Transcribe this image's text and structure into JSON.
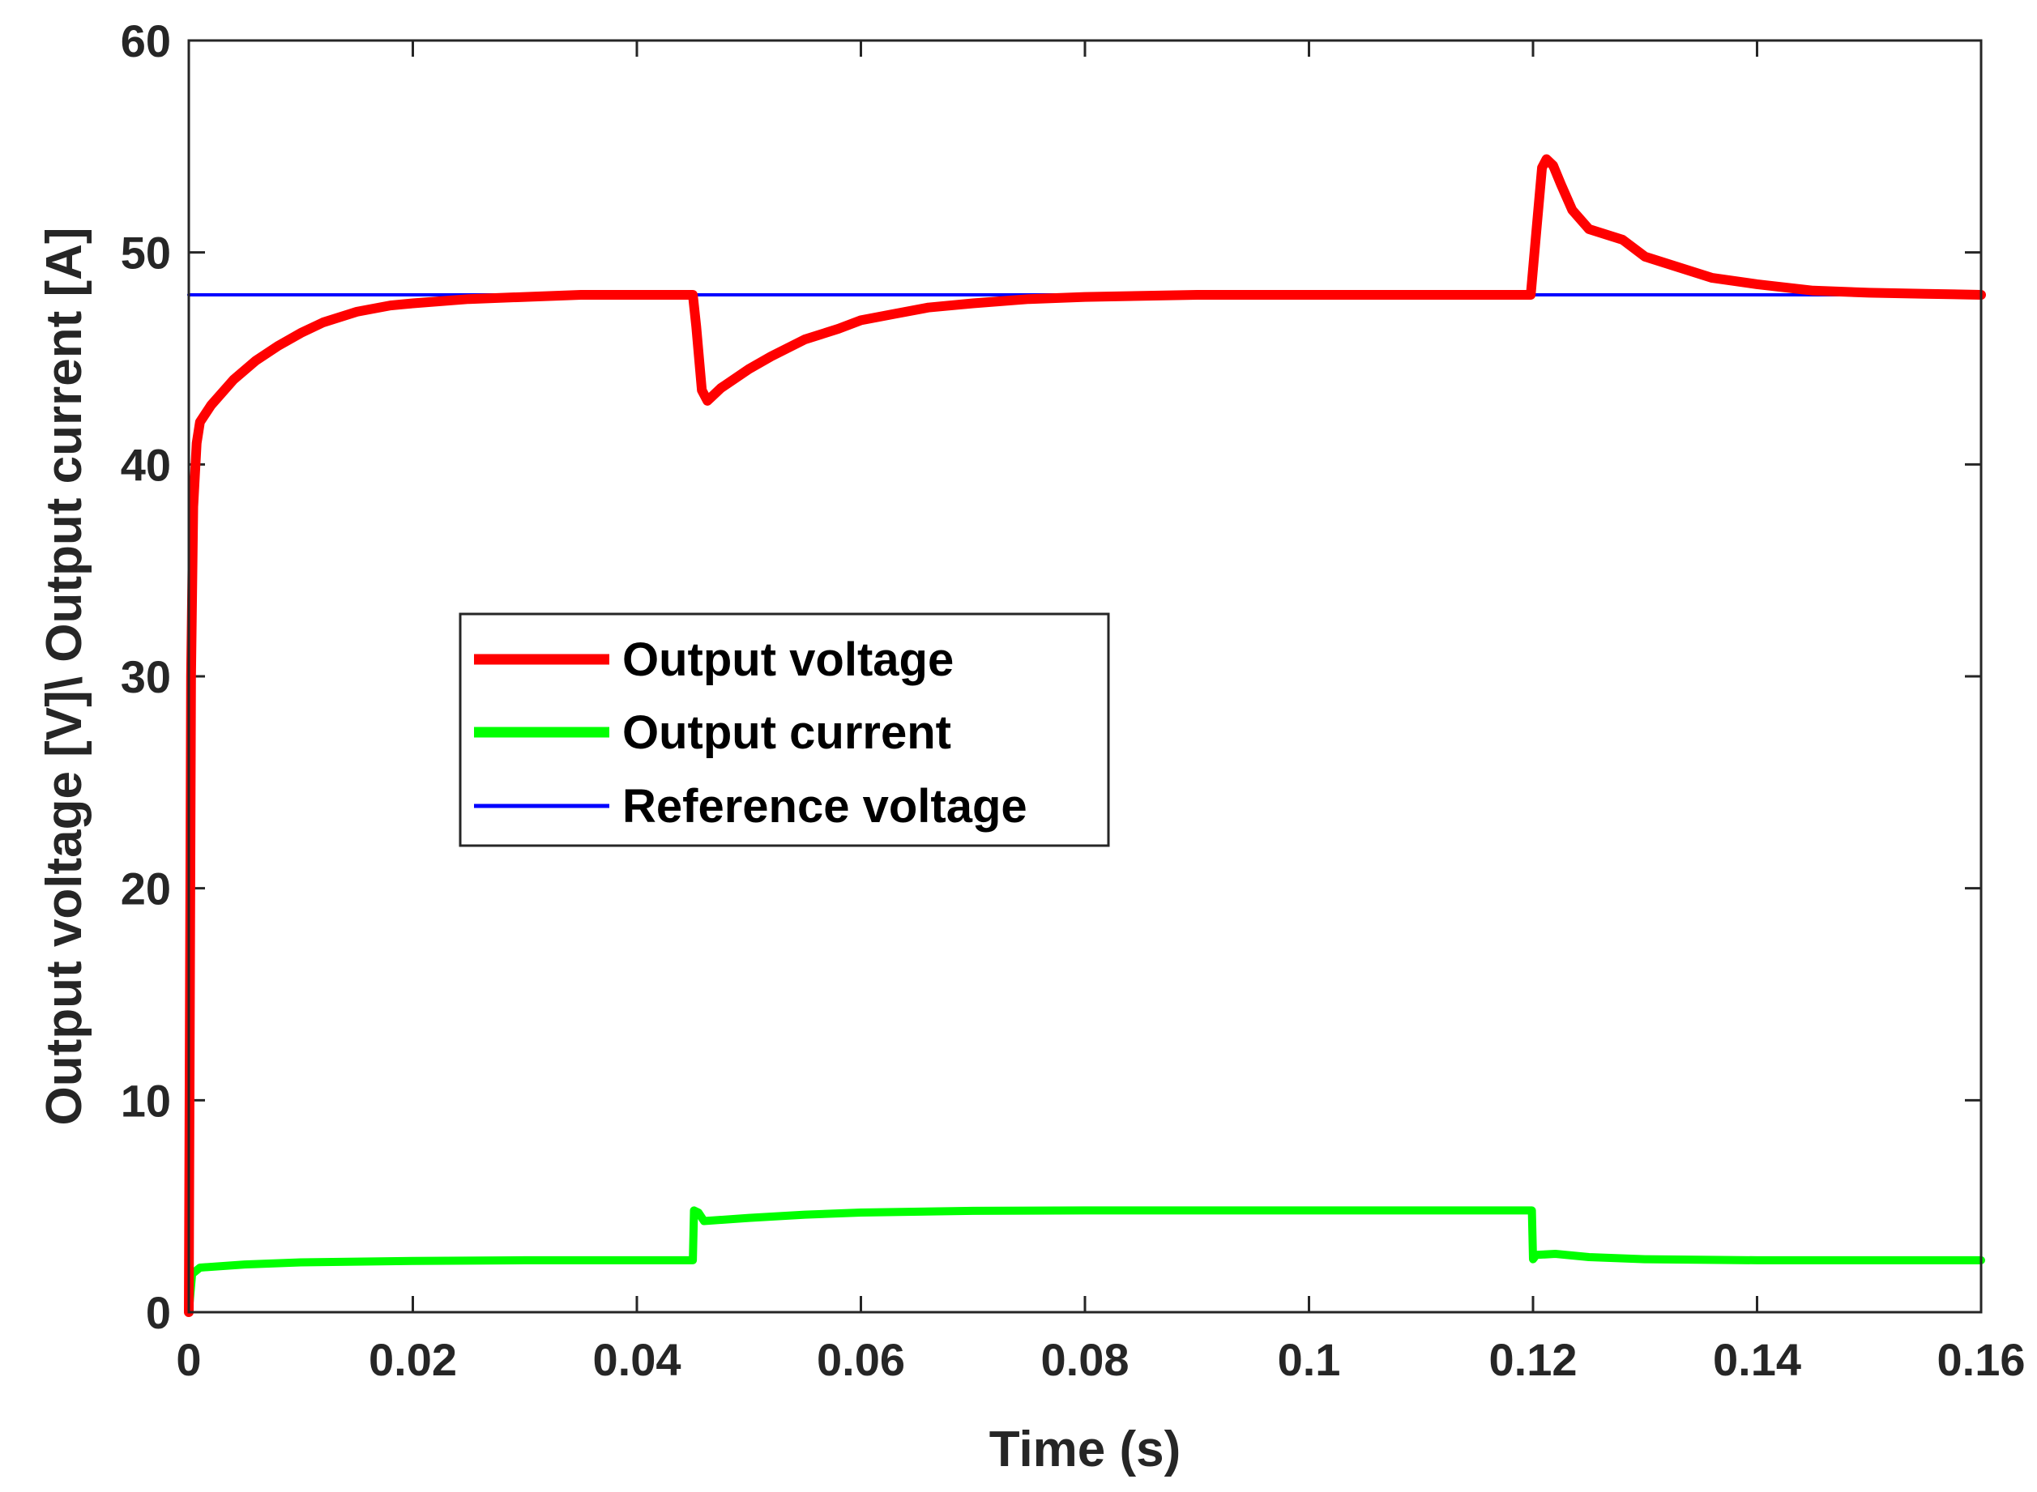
{
  "chart_data": {
    "type": "line",
    "xlabel": "Time (s)",
    "ylabel": "Output voltage [V]\\ Output current [A]",
    "xlim": [
      0,
      0.16
    ],
    "ylim": [
      0,
      60
    ],
    "x_ticks": [
      0,
      0.02,
      0.04,
      0.06,
      0.08,
      0.1,
      0.12,
      0.14,
      0.16
    ],
    "x_tick_labels": [
      "0",
      "0.02",
      "0.04",
      "0.06",
      "0.08",
      "0.1",
      "0.12",
      "0.14",
      "0.16"
    ],
    "y_ticks": [
      0,
      10,
      20,
      30,
      40,
      50,
      60
    ],
    "y_tick_labels": [
      "0",
      "10",
      "20",
      "30",
      "40",
      "50",
      "60"
    ],
    "grid": false,
    "legend_position": "center-left",
    "series": [
      {
        "name": "Output voltage",
        "color": "#ff0000",
        "points": [
          [
            0,
            0
          ],
          [
            0.0002,
            30
          ],
          [
            0.0004,
            38
          ],
          [
            0.0007,
            41
          ],
          [
            0.001,
            42
          ],
          [
            0.002,
            42.8
          ],
          [
            0.004,
            44
          ],
          [
            0.006,
            44.9
          ],
          [
            0.008,
            45.6
          ],
          [
            0.01,
            46.2
          ],
          [
            0.012,
            46.7
          ],
          [
            0.015,
            47.2
          ],
          [
            0.018,
            47.5
          ],
          [
            0.02,
            47.6
          ],
          [
            0.025,
            47.8
          ],
          [
            0.03,
            47.9
          ],
          [
            0.035,
            48
          ],
          [
            0.04,
            48
          ],
          [
            0.045,
            48
          ],
          [
            0.0453,
            46.5
          ],
          [
            0.0458,
            43.5
          ],
          [
            0.0463,
            43
          ],
          [
            0.0475,
            43.6
          ],
          [
            0.05,
            44.5
          ],
          [
            0.052,
            45.1
          ],
          [
            0.055,
            45.9
          ],
          [
            0.058,
            46.4
          ],
          [
            0.06,
            46.8
          ],
          [
            0.063,
            47.1
          ],
          [
            0.066,
            47.4
          ],
          [
            0.07,
            47.6
          ],
          [
            0.075,
            47.8
          ],
          [
            0.08,
            47.9
          ],
          [
            0.09,
            48
          ],
          [
            0.1,
            48
          ],
          [
            0.11,
            48
          ],
          [
            0.1198,
            48
          ],
          [
            0.1203,
            51
          ],
          [
            0.1208,
            54
          ],
          [
            0.1212,
            54.4
          ],
          [
            0.1218,
            54.1
          ],
          [
            0.1225,
            53.2
          ],
          [
            0.1235,
            52
          ],
          [
            0.125,
            51.1
          ],
          [
            0.128,
            50.6
          ],
          [
            0.13,
            49.8
          ],
          [
            0.133,
            49.3
          ],
          [
            0.136,
            48.8
          ],
          [
            0.14,
            48.5
          ],
          [
            0.145,
            48.2
          ],
          [
            0.15,
            48.1
          ],
          [
            0.155,
            48.05
          ],
          [
            0.16,
            48
          ]
        ]
      },
      {
        "name": "Output current",
        "color": "#00ff00",
        "points": [
          [
            0,
            0
          ],
          [
            0.0003,
            1.8
          ],
          [
            0.001,
            2.1
          ],
          [
            0.005,
            2.25
          ],
          [
            0.01,
            2.35
          ],
          [
            0.02,
            2.42
          ],
          [
            0.03,
            2.45
          ],
          [
            0.04,
            2.45
          ],
          [
            0.045,
            2.45
          ],
          [
            0.0451,
            4.8
          ],
          [
            0.0455,
            4.7
          ],
          [
            0.046,
            4.3
          ],
          [
            0.05,
            4.45
          ],
          [
            0.055,
            4.6
          ],
          [
            0.06,
            4.7
          ],
          [
            0.07,
            4.78
          ],
          [
            0.08,
            4.8
          ],
          [
            0.09,
            4.8
          ],
          [
            0.1,
            4.8
          ],
          [
            0.11,
            4.8
          ],
          [
            0.1199,
            4.8
          ],
          [
            0.12,
            2.5
          ],
          [
            0.1203,
            2.7
          ],
          [
            0.122,
            2.75
          ],
          [
            0.125,
            2.6
          ],
          [
            0.13,
            2.5
          ],
          [
            0.14,
            2.45
          ],
          [
            0.15,
            2.45
          ],
          [
            0.16,
            2.45
          ]
        ]
      },
      {
        "name": "Reference voltage",
        "color": "#0000ff",
        "points": [
          [
            0,
            48
          ],
          [
            0.16,
            48
          ]
        ]
      }
    ]
  }
}
